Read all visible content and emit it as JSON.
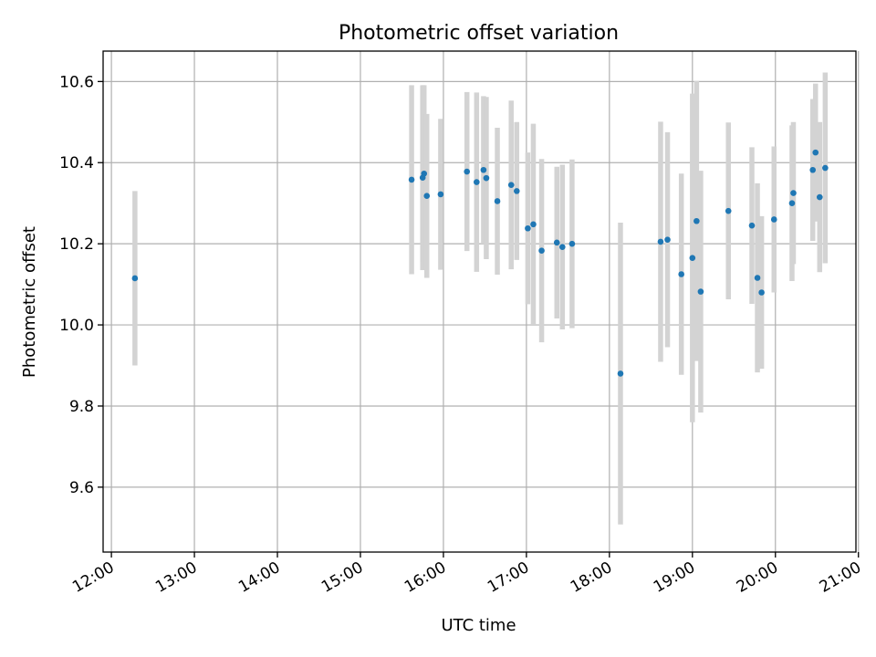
{
  "chart_data": {
    "type": "scatter",
    "title": "Photometric offset variation",
    "xlabel": "UTC time",
    "ylabel": "Photometric offset",
    "x_tick_labels": [
      "12:00",
      "13:00",
      "14:00",
      "15:00",
      "16:00",
      "17:00",
      "18:00",
      "19:00",
      "20:00",
      "21:00"
    ],
    "x_ticks_hours": [
      12,
      13,
      14,
      15,
      16,
      17,
      18,
      19,
      20,
      21
    ],
    "y_tick_labels": [
      "9.6",
      "9.8",
      "10.0",
      "10.2",
      "10.4",
      "10.6"
    ],
    "y_ticks": [
      9.6,
      9.8,
      10.0,
      10.2,
      10.4,
      10.6
    ],
    "xlim_hours": [
      11.9,
      20.97
    ],
    "ylim": [
      9.44,
      10.675
    ],
    "grid": true,
    "marker_color": "#1f77b4",
    "errorbar_color": "#d3d3d3",
    "points": [
      {
        "time": "12:17",
        "y": 10.115,
        "err": 0.215
      },
      {
        "time": "15:37",
        "y": 10.358,
        "err": 0.233
      },
      {
        "time": "15:45",
        "y": 10.363,
        "err": 0.228
      },
      {
        "time": "15:46",
        "y": 10.373,
        "err": 0.218
      },
      {
        "time": "15:48",
        "y": 10.318,
        "err": 0.202
      },
      {
        "time": "15:58",
        "y": 10.322,
        "err": 0.186
      },
      {
        "time": "16:17",
        "y": 10.378,
        "err": 0.196
      },
      {
        "time": "16:24",
        "y": 10.352,
        "err": 0.221
      },
      {
        "time": "16:29",
        "y": 10.382,
        "err": 0.182
      },
      {
        "time": "16:31",
        "y": 10.362,
        "err": 0.2
      },
      {
        "time": "16:39",
        "y": 10.305,
        "err": 0.181
      },
      {
        "time": "16:49",
        "y": 10.345,
        "err": 0.208
      },
      {
        "time": "16:53",
        "y": 10.33,
        "err": 0.17
      },
      {
        "time": "17:01",
        "y": 10.238,
        "err": 0.187
      },
      {
        "time": "17:05",
        "y": 10.248,
        "err": 0.248
      },
      {
        "time": "17:11",
        "y": 10.183,
        "err": 0.226
      },
      {
        "time": "17:22",
        "y": 10.203,
        "err": 0.187
      },
      {
        "time": "17:26",
        "y": 10.192,
        "err": 0.203
      },
      {
        "time": "17:33",
        "y": 10.2,
        "err": 0.208
      },
      {
        "time": "18:08",
        "y": 9.88,
        "err": 0.372
      },
      {
        "time": "18:37",
        "y": 10.205,
        "err": 0.296
      },
      {
        "time": "18:42",
        "y": 10.21,
        "err": 0.265
      },
      {
        "time": "18:52",
        "y": 10.125,
        "err": 0.248
      },
      {
        "time": "19:00",
        "y": 10.165,
        "err": 0.405
      },
      {
        "time": "19:03",
        "y": 10.256,
        "err": 0.345
      },
      {
        "time": "19:06",
        "y": 10.082,
        "err": 0.298
      },
      {
        "time": "19:26",
        "y": 10.281,
        "err": 0.218
      },
      {
        "time": "19:43",
        "y": 10.245,
        "err": 0.193
      },
      {
        "time": "19:47",
        "y": 10.116,
        "err": 0.233
      },
      {
        "time": "19:50",
        "y": 10.08,
        "err": 0.188
      },
      {
        "time": "19:59",
        "y": 10.26,
        "err": 0.18
      },
      {
        "time": "20:12",
        "y": 10.3,
        "err": 0.192
      },
      {
        "time": "20:13",
        "y": 10.325,
        "err": 0.175
      },
      {
        "time": "20:27",
        "y": 10.382,
        "err": 0.175
      },
      {
        "time": "20:29",
        "y": 10.425,
        "err": 0.17
      },
      {
        "time": "20:32",
        "y": 10.315,
        "err": 0.185
      },
      {
        "time": "20:36",
        "y": 10.387,
        "err": 0.235
      }
    ]
  }
}
